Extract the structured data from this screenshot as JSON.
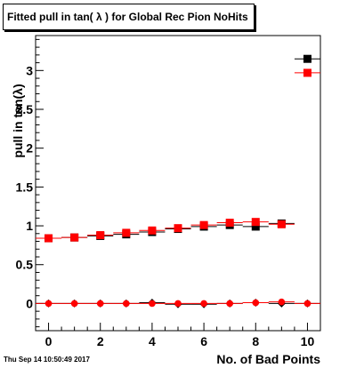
{
  "chart_data": {
    "type": "scatter",
    "title": "Fitted pull in tan( λ ) for Global Rec Pion NoHits",
    "xlabel": "No. of Bad Points",
    "ylabel": "pull in tan(λ)",
    "xlim": [
      -0.5,
      10.5
    ],
    "ylim": [
      -0.35,
      3.45
    ],
    "xticks": [
      0,
      2,
      4,
      6,
      8,
      10
    ],
    "yticks": [
      0,
      0.5,
      1,
      1.5,
      2,
      2.5,
      3
    ],
    "xtick_labels": [
      "0",
      "2",
      "4",
      "6",
      "8",
      "10"
    ],
    "ytick_labels": [
      "0",
      "0.5",
      "1",
      "1.5",
      "2",
      "2.5",
      "3"
    ],
    "grid": false,
    "series": [
      {
        "color": "#000000",
        "marker": "square",
        "x": [
          0,
          1,
          2,
          3,
          4,
          5,
          6,
          7,
          8,
          9,
          10
        ],
        "y": [
          0.84,
          0.85,
          0.87,
          0.89,
          0.92,
          0.96,
          0.99,
          1.01,
          0.99,
          1.03,
          3.15
        ]
      },
      {
        "color": "#ff0000",
        "marker": "square",
        "x": [
          0,
          1,
          2,
          3,
          4,
          5,
          6,
          7,
          8,
          9,
          10
        ],
        "y": [
          0.84,
          0.85,
          0.88,
          0.91,
          0.94,
          0.97,
          1.01,
          1.04,
          1.05,
          1.02,
          2.97
        ]
      },
      {
        "color": "#000000",
        "marker": "diamond",
        "x": [
          0,
          1,
          2,
          3,
          4,
          5,
          6,
          7,
          8,
          9,
          10
        ],
        "y": [
          0.0,
          0.0,
          0.0,
          0.0,
          0.01,
          -0.01,
          -0.01,
          0.0,
          0.01,
          0.0,
          0.0
        ]
      },
      {
        "color": "#ff0000",
        "marker": "circle",
        "x": [
          0,
          1,
          2,
          3,
          4,
          5,
          6,
          7,
          8,
          9,
          10
        ],
        "y": [
          0.0,
          0.0,
          0.0,
          0.0,
          0.0,
          0.0,
          0.0,
          0.0,
          0.01,
          0.02,
          0.0
        ]
      }
    ]
  },
  "timestamp": "Thu Sep 14 10:50:49 2017"
}
